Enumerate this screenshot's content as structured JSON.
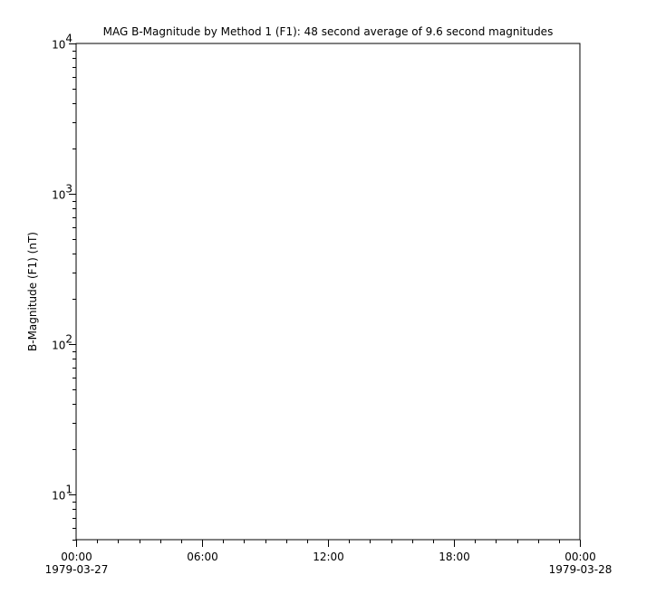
{
  "chart_data": {
    "type": "line",
    "title": "MAG  B-Magnitude by Method 1 (F1): 48 second average of 9.6 second magnitudes",
    "xlabel": "",
    "ylabel": "B-Magnitude (F1) (nT)",
    "yscale": "log",
    "ylim": [
      5,
      10000
    ],
    "xlim": [
      "1979-03-27 00:00",
      "1979-03-28 00:00"
    ],
    "y_ticks": [
      {
        "value": 10,
        "base": "10",
        "exp": "1"
      },
      {
        "value": 100,
        "base": "10",
        "exp": "2"
      },
      {
        "value": 1000,
        "base": "10",
        "exp": "3"
      },
      {
        "value": 10000,
        "base": "10",
        "exp": "4"
      }
    ],
    "x_ticks": [
      {
        "hour": 0,
        "time": "00:00",
        "date": "1979-03-27"
      },
      {
        "hour": 6,
        "time": "06:00",
        "date": ""
      },
      {
        "hour": 12,
        "time": "12:00",
        "date": ""
      },
      {
        "hour": 18,
        "time": "18:00",
        "date": ""
      },
      {
        "hour": 24,
        "time": "00:00",
        "date": "1979-03-28"
      }
    ],
    "x_minor_tick_interval_hours": 1,
    "grid": false,
    "series": []
  }
}
